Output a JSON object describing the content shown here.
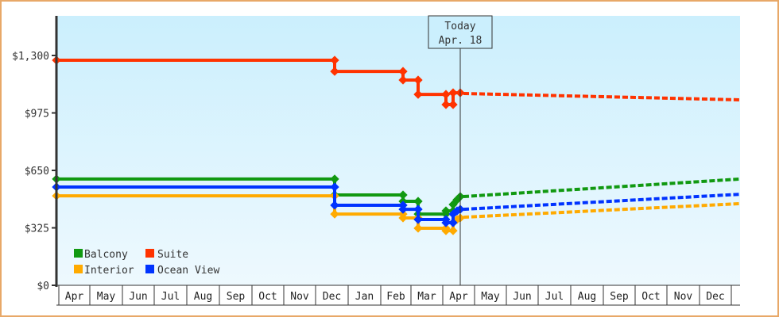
{
  "chart_data": {
    "type": "line",
    "title": "",
    "xlabel": "",
    "ylabel": "",
    "ylim": [
      0,
      1300
    ],
    "y_ticks": [
      {
        "value": 0,
        "label": "$0"
      },
      {
        "value": 325,
        "label": "$325"
      },
      {
        "value": 650,
        "label": "$650"
      },
      {
        "value": 975,
        "label": "$975"
      },
      {
        "value": 1300,
        "label": "$1,300"
      }
    ],
    "x_ticks": [
      "Apr",
      "May",
      "Jun",
      "Jul",
      "Aug",
      "Sep",
      "Oct",
      "Nov",
      "Dec",
      "Jan",
      "Feb",
      "Mar",
      "Apr",
      "May",
      "Jun",
      "Jul",
      "Aug",
      "Sep",
      "Oct",
      "Nov",
      "Dec"
    ],
    "today_marker": {
      "line1": "Today",
      "line2": "Apr. 18"
    },
    "legend_position": "lower-left",
    "grid": false,
    "series": [
      {
        "name": "Balcony",
        "color": "#119911",
        "history": [
          {
            "x": 71,
            "y": 601
          },
          {
            "x": 421,
            "y": 601
          },
          {
            "x": 421,
            "y": 511
          },
          {
            "x": 507,
            "y": 511
          },
          {
            "x": 507,
            "y": 475
          },
          {
            "x": 526,
            "y": 475
          },
          {
            "x": 526,
            "y": 403
          },
          {
            "x": 561,
            "y": 403
          },
          {
            "x": 561,
            "y": 421
          },
          {
            "x": 570,
            "y": 421
          },
          {
            "x": 570,
            "y": 457
          },
          {
            "x": 575,
            "y": 484
          },
          {
            "x": 579,
            "y": 502
          }
        ],
        "forecast_start": 502,
        "forecast_end": 601
      },
      {
        "name": "Suite",
        "color": "#ff3300",
        "history": [
          {
            "x": 71,
            "y": 1273
          },
          {
            "x": 421,
            "y": 1273
          },
          {
            "x": 421,
            "y": 1210
          },
          {
            "x": 507,
            "y": 1210
          },
          {
            "x": 507,
            "y": 1161
          },
          {
            "x": 526,
            "y": 1161
          },
          {
            "x": 526,
            "y": 1080
          },
          {
            "x": 561,
            "y": 1080
          },
          {
            "x": 561,
            "y": 1022
          },
          {
            "x": 570,
            "y": 1022
          },
          {
            "x": 570,
            "y": 1089
          },
          {
            "x": 579,
            "y": 1089
          }
        ],
        "forecast_start": 1085,
        "forecast_end": 1049
      },
      {
        "name": "Interior",
        "color": "#ffaa00",
        "history": [
          {
            "x": 71,
            "y": 506
          },
          {
            "x": 421,
            "y": 506
          },
          {
            "x": 421,
            "y": 403
          },
          {
            "x": 507,
            "y": 403
          },
          {
            "x": 507,
            "y": 381
          },
          {
            "x": 526,
            "y": 381
          },
          {
            "x": 526,
            "y": 323
          },
          {
            "x": 561,
            "y": 323
          },
          {
            "x": 561,
            "y": 309
          },
          {
            "x": 570,
            "y": 309
          },
          {
            "x": 570,
            "y": 354
          },
          {
            "x": 575,
            "y": 372
          },
          {
            "x": 579,
            "y": 381
          }
        ],
        "forecast_start": 385,
        "forecast_end": 462
      },
      {
        "name": "Ocean View",
        "color": "#0033ff",
        "history": [
          {
            "x": 71,
            "y": 556
          },
          {
            "x": 421,
            "y": 556
          },
          {
            "x": 421,
            "y": 453
          },
          {
            "x": 507,
            "y": 453
          },
          {
            "x": 507,
            "y": 430
          },
          {
            "x": 526,
            "y": 430
          },
          {
            "x": 526,
            "y": 372
          },
          {
            "x": 561,
            "y": 372
          },
          {
            "x": 561,
            "y": 354
          },
          {
            "x": 570,
            "y": 354
          },
          {
            "x": 570,
            "y": 403
          },
          {
            "x": 575,
            "y": 421
          },
          {
            "x": 579,
            "y": 430
          }
        ],
        "forecast_start": 430,
        "forecast_end": 515
      }
    ]
  },
  "legend": {
    "items": [
      {
        "label": "Balcony",
        "color": "#119911"
      },
      {
        "label": "Suite",
        "color": "#ff3300"
      },
      {
        "label": "Interior",
        "color": "#ffaa00"
      },
      {
        "label": "Ocean View",
        "color": "#0033ff"
      }
    ]
  },
  "today": {
    "line1": "Today",
    "line2": "Apr. 18"
  }
}
